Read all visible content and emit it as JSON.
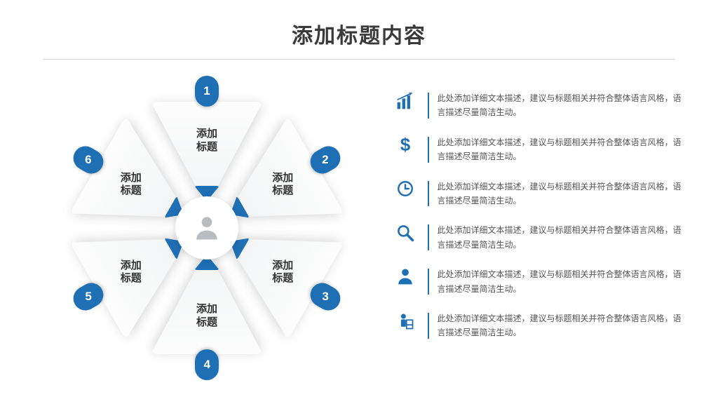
{
  "header": {
    "title": "添加标题内容"
  },
  "colors": {
    "accent": "#1f6fb5",
    "accent_dark": "#18578f",
    "tri_bg_top": "#fdfdfd",
    "tri_bg_bottom": "#f1f3f4",
    "rule": "#d0d0d0",
    "text": "#3a3a3a",
    "body_text": "#555555",
    "background": "#ffffff"
  },
  "hex": {
    "center_icon": "person",
    "radius": 170,
    "segment_count": 6,
    "segment_label": "添加\n标题",
    "segments": [
      {
        "n": "1",
        "angle": -90,
        "label": "添加\n标题"
      },
      {
        "n": "2",
        "angle": -30,
        "label": "添加\n标题"
      },
      {
        "n": "3",
        "angle": 30,
        "label": "添加\n标题"
      },
      {
        "n": "4",
        "angle": 90,
        "label": "添加\n标题"
      },
      {
        "n": "5",
        "angle": 150,
        "label": "添加\n标题"
      },
      {
        "n": "6",
        "angle": 210,
        "label": "添加\n标题"
      }
    ],
    "badge": {
      "bg": "#1f6fb5",
      "fg": "#ffffff",
      "fontsize": 17
    },
    "label_fontsize": 15
  },
  "list": {
    "icon_color": "#1f6fb5",
    "bar_color": "#1f6fb5",
    "text_fontsize": 12,
    "items": [
      {
        "icon": "bars",
        "text": "此处添加详细文本描述，建议与标题相关并符合整体语言风格，语言描述尽量简洁生动。"
      },
      {
        "icon": "dollar",
        "text": "此处添加详细文本描述，建议与标题相关并符合整体语言风格，语言描述尽量简洁生动。"
      },
      {
        "icon": "clock",
        "text": "此处添加详细文本描述，建议与标题相关并符合整体语言风格，语言描述尽量简洁生动。"
      },
      {
        "icon": "search",
        "text": "此处添加详细文本描述，建议与标题相关并符合整体语言风格，语言描述尽量简洁生动。"
      },
      {
        "icon": "user",
        "text": "此处添加详细文本描述，建议与标题相关并符合整体语言风格，语言描述尽量简洁生动。"
      },
      {
        "icon": "worker",
        "text": "此处添加详细文本描述，建议与标题相关并符合整体语言风格，语言描述尽量简洁生动。"
      }
    ]
  }
}
